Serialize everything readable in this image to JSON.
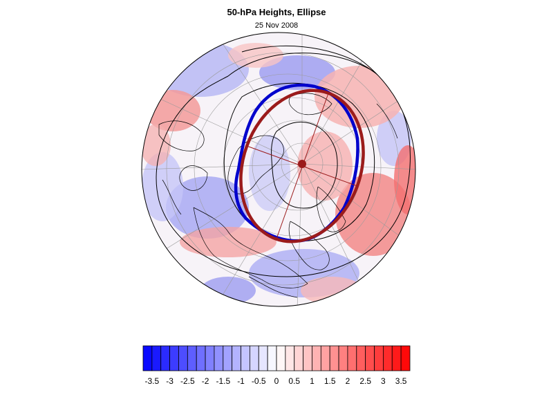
{
  "chart_data": {
    "type": "heatmap",
    "projection": "polar-stereographic (northern hemisphere)",
    "title": "50-hPa Heights, Ellipse",
    "subtitle": "25 Nov 2008",
    "colorbar": {
      "tick_labels": [
        "-3.5",
        "-3",
        "-2.5",
        "-2",
        "-1.5",
        "-1",
        "-0.5",
        "0",
        "0.5",
        "1",
        "1.5",
        "2",
        "2.5",
        "3",
        "3.5"
      ],
      "ticks": [
        -3.5,
        -3,
        -2.5,
        -2,
        -1.5,
        -1,
        -0.5,
        0,
        0.5,
        1,
        1.5,
        2,
        2.5,
        3,
        3.5
      ],
      "range": [
        -3.75,
        3.75
      ],
      "levels": [
        -3.75,
        -3.5,
        -3.25,
        -3,
        -2.75,
        -2.5,
        -2.25,
        -2,
        -1.75,
        -1.5,
        -1.25,
        -1,
        -0.75,
        -0.5,
        -0.25,
        0,
        0.25,
        0.5,
        0.75,
        1,
        1.25,
        1.5,
        1.75,
        2,
        2.25,
        2.5,
        2.75,
        3,
        3.25,
        3.5,
        3.75
      ],
      "colormap": "blue-white-red",
      "negative_color": "#0000ff",
      "positive_color": "#ff0000"
    },
    "overlays": {
      "observed_contour_color": "#0000cc",
      "fitted_ellipse_color": "#9b1b1b",
      "height_contour_color": "#000000"
    }
  }
}
